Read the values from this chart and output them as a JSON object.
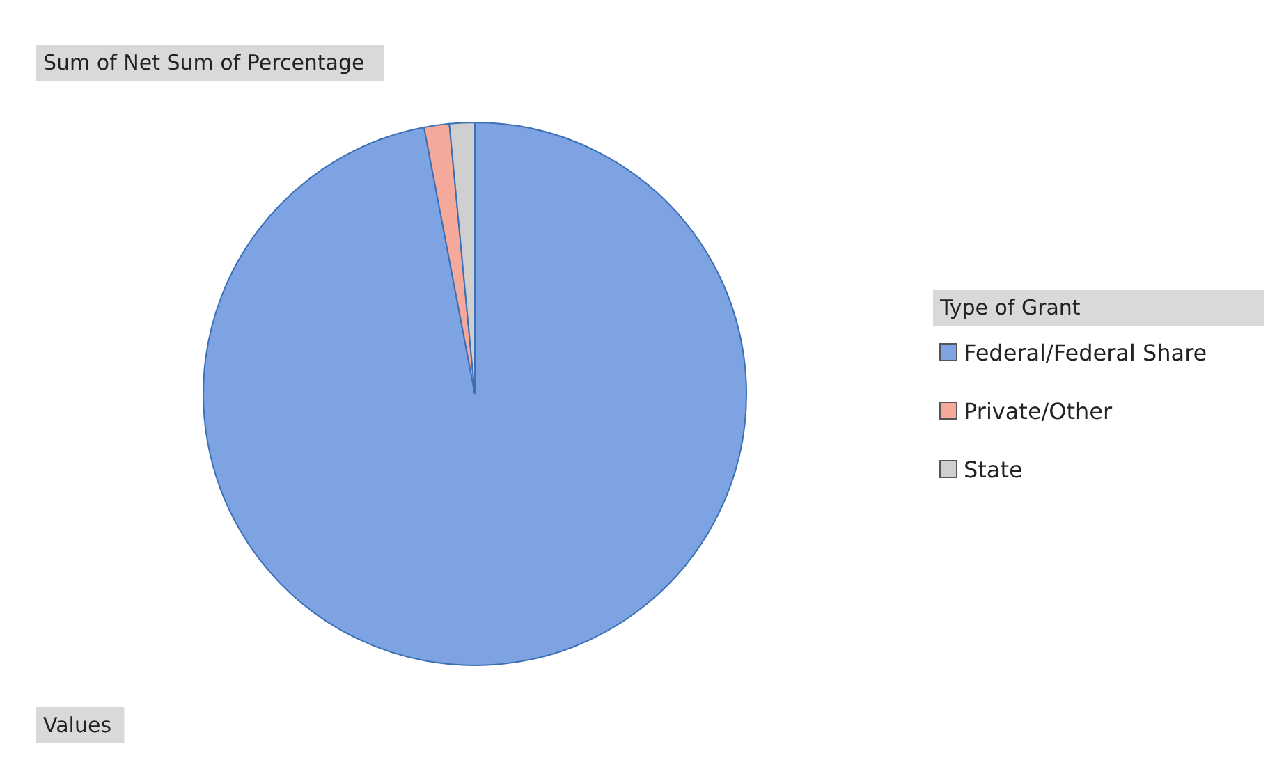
{
  "chart_data": {
    "type": "pie",
    "title": "Sum of Net  Sum of Percentage",
    "legend_title": "Type of Grant",
    "annotations": [
      "Values"
    ],
    "categories": [
      "Federal/Federal Share",
      "Private/Other",
      "State"
    ],
    "values": [
      97,
      1.5,
      1.5
    ],
    "colors": [
      "#7da3e3",
      "#f4a99a",
      "#cfcfcf"
    ],
    "legend": "right"
  }
}
